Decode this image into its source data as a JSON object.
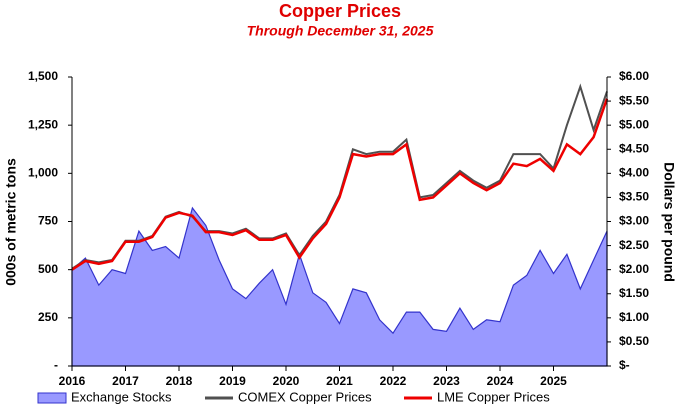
{
  "chart_data": {
    "type": "line",
    "title": "Copper Prices",
    "subtitle": "Through December 31, 2025",
    "y_label": "000s of metric tons",
    "y2_label": "Dollars per pound",
    "x": [
      2016,
      2016.25,
      2016.5,
      2016.75,
      2017,
      2017.25,
      2017.5,
      2017.75,
      2018,
      2018.25,
      2018.5,
      2018.75,
      2019,
      2019.25,
      2019.5,
      2019.75,
      2020,
      2020.25,
      2020.5,
      2020.75,
      2021,
      2021.25,
      2021.5,
      2021.75,
      2022,
      2022.25,
      2022.5,
      2022.75,
      2023,
      2023.25,
      2023.5,
      2023.75,
      2024,
      2024.25,
      2024.5,
      2024.75,
      2025,
      2025.25,
      2025.5,
      2025.75,
      2026
    ],
    "xlim": [
      2016,
      2026
    ],
    "xticks": [
      2016,
      2017,
      2018,
      2019,
      2020,
      2021,
      2022,
      2023,
      2024,
      2025
    ],
    "ylim": [
      0,
      1500
    ],
    "yticks": [
      {
        "value": 0,
        "label": "-"
      },
      250,
      500,
      750,
      {
        "value": 1000,
        "label": "1,000"
      },
      {
        "value": 1250,
        "label": "1,250"
      },
      {
        "value": 1500,
        "label": "1,500"
      }
    ],
    "y2lim": [
      0,
      6
    ],
    "y2ticks": [
      {
        "value": 0,
        "label": "$-"
      },
      {
        "value": 0.5,
        "label": "$0.50"
      },
      {
        "value": 1,
        "label": "$1.00"
      },
      {
        "value": 1.5,
        "label": "$1.50"
      },
      {
        "value": 2,
        "label": "$2.00"
      },
      {
        "value": 2.5,
        "label": "$2.50"
      },
      {
        "value": 3,
        "label": "$3.00"
      },
      {
        "value": 3.5,
        "label": "$3.50"
      },
      {
        "value": 4,
        "label": "$4.00"
      },
      {
        "value": 4.5,
        "label": "$4.50"
      },
      {
        "value": 5,
        "label": "$5.00"
      },
      {
        "value": 5.5,
        "label": "$5.50"
      },
      {
        "value": 6,
        "label": "$6.00"
      }
    ],
    "series": [
      {
        "name": "Exchange Stocks",
        "color": "#9999ff",
        "kind": "area",
        "values": [
          500,
          560,
          420,
          500,
          480,
          700,
          600,
          620,
          560,
          820,
          730,
          550,
          400,
          350,
          430,
          500,
          320,
          580,
          380,
          330,
          220,
          400,
          380,
          240,
          170,
          280,
          280,
          190,
          180,
          300,
          190,
          240,
          230,
          420,
          470,
          600,
          480,
          580,
          400,
          550,
          700
        ]
      },
      {
        "name": "COMEX Copper Prices",
        "color": "#505050",
        "axis": "y2",
        "values": [
          2.02,
          2.2,
          2.15,
          2.2,
          2.6,
          2.6,
          2.7,
          3.1,
          3.2,
          3.1,
          2.8,
          2.8,
          2.75,
          2.85,
          2.65,
          2.65,
          2.75,
          2.3,
          2.7,
          3.0,
          3.55,
          4.5,
          4.4,
          4.45,
          4.45,
          4.7,
          3.5,
          3.55,
          3.8,
          4.05,
          3.85,
          3.7,
          3.85,
          4.4,
          4.4,
          4.4,
          4.1,
          5.0,
          5.8,
          4.9,
          5.7
        ]
      },
      {
        "name": "LME Copper Prices",
        "color": "#ee0000",
        "axis": "y2",
        "values": [
          2.0,
          2.18,
          2.12,
          2.18,
          2.58,
          2.58,
          2.68,
          3.08,
          3.18,
          3.12,
          2.78,
          2.78,
          2.72,
          2.82,
          2.62,
          2.62,
          2.72,
          2.25,
          2.65,
          2.95,
          3.5,
          4.4,
          4.35,
          4.4,
          4.4,
          4.6,
          3.45,
          3.5,
          3.75,
          4.0,
          3.8,
          3.65,
          3.8,
          4.2,
          4.15,
          4.3,
          4.05,
          4.6,
          4.4,
          4.75,
          5.55
        ]
      }
    ]
  }
}
